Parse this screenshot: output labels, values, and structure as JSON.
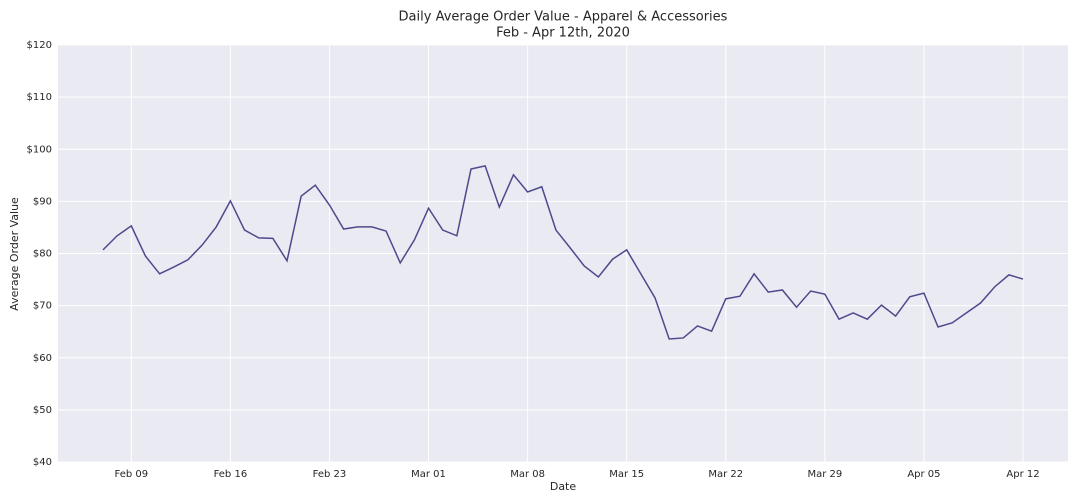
{
  "chart_data": {
    "type": "line",
    "title": "Daily Average Order Value - Apparel & Accessories",
    "subtitle": "Feb - Apr 12th, 2020",
    "xlabel": "Date",
    "ylabel": "Average Order Value",
    "x": [
      "Feb 07",
      "Feb 08",
      "Feb 09",
      "Feb 10",
      "Feb 11",
      "Feb 12",
      "Feb 13",
      "Feb 14",
      "Feb 15",
      "Feb 16",
      "Feb 17",
      "Feb 18",
      "Feb 19",
      "Feb 20",
      "Feb 21",
      "Feb 22",
      "Feb 23",
      "Feb 24",
      "Feb 25",
      "Feb 26",
      "Feb 27",
      "Feb 28",
      "Feb 29",
      "Mar 01",
      "Mar 02",
      "Mar 03",
      "Mar 04",
      "Mar 05",
      "Mar 06",
      "Mar 07",
      "Mar 08",
      "Mar 09",
      "Mar 10",
      "Mar 11",
      "Mar 12",
      "Mar 13",
      "Mar 14",
      "Mar 15",
      "Mar 16",
      "Mar 17",
      "Mar 18",
      "Mar 19",
      "Mar 20",
      "Mar 21",
      "Mar 22",
      "Mar 23",
      "Mar 24",
      "Mar 25",
      "Mar 26",
      "Mar 27",
      "Mar 28",
      "Mar 29",
      "Mar 30",
      "Mar 31",
      "Apr 01",
      "Apr 02",
      "Apr 03",
      "Apr 04",
      "Apr 05",
      "Apr 06",
      "Apr 07",
      "Apr 08",
      "Apr 09",
      "Apr 10",
      "Apr 11",
      "Apr 12"
    ],
    "series": [
      {
        "name": "Average Order Value",
        "color": "#4c4a8c",
        "values": [
          80.7,
          83.4,
          85.3,
          79.5,
          76.1,
          77.4,
          78.8,
          81.6,
          85.1,
          90.1,
          84.5,
          83.0,
          82.9,
          78.6,
          91.0,
          93.1,
          89.3,
          84.7,
          85.1,
          85.1,
          84.3,
          78.2,
          82.6,
          88.7,
          84.5,
          83.4,
          96.2,
          96.8,
          88.9,
          95.1,
          91.8,
          92.8,
          84.5,
          81.1,
          77.6,
          75.5,
          78.9,
          80.7,
          76.1,
          71.5,
          63.6,
          63.8,
          66.1,
          65.1,
          71.3,
          71.8,
          76.1,
          72.6,
          73.0,
          69.7,
          72.8,
          72.2,
          67.4,
          68.6,
          67.4,
          70.1,
          68.0,
          71.7,
          72.4,
          65.9,
          66.7,
          68.6,
          70.5,
          73.6,
          75.9,
          75.1
        ]
      }
    ],
    "xticks": [
      "Feb 09",
      "Feb 16",
      "Feb 23",
      "Mar 01",
      "Mar 08",
      "Mar 15",
      "Mar 22",
      "Mar 29",
      "Apr 05",
      "Apr 12"
    ],
    "ylim": [
      40,
      120
    ],
    "yticks": [
      {
        "value": 40,
        "label": "$40"
      },
      {
        "value": 50,
        "label": "$50"
      },
      {
        "value": 60,
        "label": "$60"
      },
      {
        "value": 70,
        "label": "$70"
      },
      {
        "value": 80,
        "label": "$80"
      },
      {
        "value": 90,
        "label": "$90"
      },
      {
        "value": 100,
        "label": "$100"
      },
      {
        "value": 110,
        "label": "$110"
      },
      {
        "value": 120,
        "label": "$120"
      }
    ],
    "grid": true,
    "background": "#eaeaf2"
  }
}
